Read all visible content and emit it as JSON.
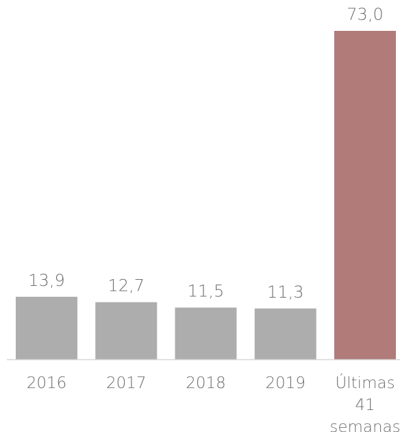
{
  "chart_data": {
    "type": "bar",
    "title": "",
    "xlabel": "",
    "ylabel": "",
    "categories": [
      "2016",
      "2017",
      "2018",
      "2019",
      "Últimas 41 semanas"
    ],
    "category_label_lines": [
      [
        "2016"
      ],
      [
        "2017"
      ],
      [
        "2018"
      ],
      [
        "2019"
      ],
      [
        "Últimas",
        "41",
        "semanas"
      ]
    ],
    "values": [
      13.9,
      12.7,
      11.5,
      11.3,
      73.0
    ],
    "value_labels": [
      "13,9",
      "12,7",
      "11,5",
      "11,3",
      "73,0"
    ],
    "bar_colors": [
      "#adadad",
      "#adadad",
      "#adadad",
      "#adadad",
      "#b07b79"
    ],
    "baseline_color": "#d6d6d6",
    "label_color": "#6f6f6f",
    "ylim": [
      0,
      73.0
    ],
    "grid": false,
    "legend": "none"
  }
}
